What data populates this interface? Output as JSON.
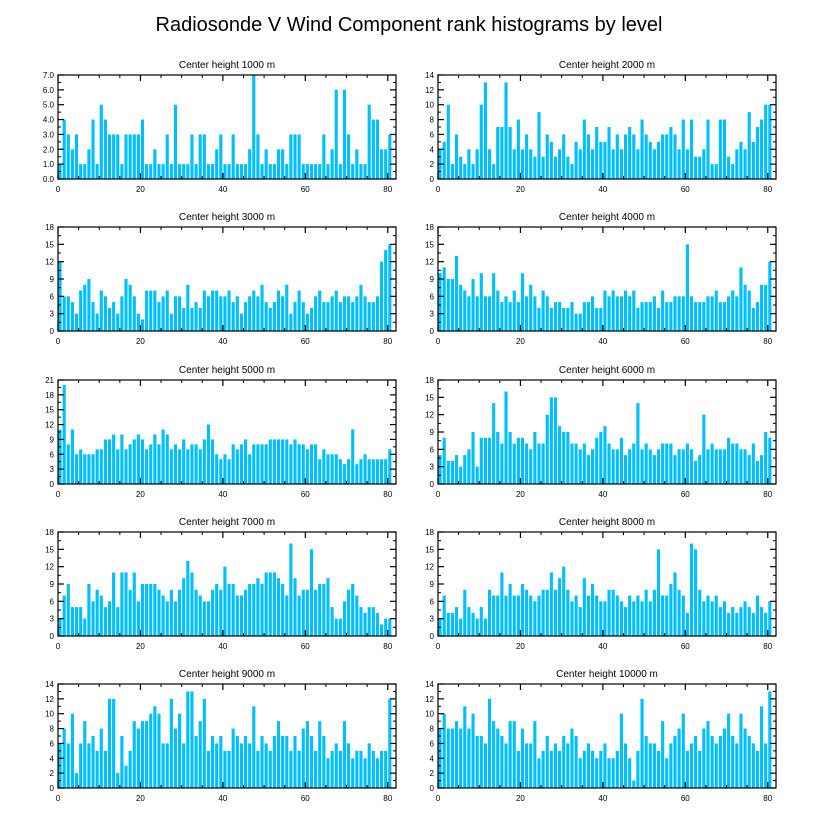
{
  "figure": {
    "title": "Radiosonde V Wind Component rank histograms by level"
  },
  "colors": {
    "bar": "#00bfff",
    "axis": "#000000",
    "background": "#ffffff"
  },
  "chart_data": [
    {
      "type": "bar",
      "title": "Center height 1000 m",
      "xlabel": "",
      "ylabel": "",
      "xlim": [
        0,
        82
      ],
      "ylim": [
        0,
        7
      ],
      "xticks": [
        0,
        20,
        40,
        60,
        80
      ],
      "yticks": [
        0,
        1,
        2,
        3,
        4,
        5,
        6,
        7
      ],
      "ytick_labels": [
        "0.0",
        "1.0",
        "2.0",
        "3.0",
        "4.0",
        "5.0",
        "6.0",
        "7.0"
      ],
      "categories_start": 0,
      "values": [
        1,
        4,
        3,
        2,
        3,
        1,
        1,
        2,
        4,
        1,
        5,
        4,
        3,
        3,
        3,
        1,
        3,
        3,
        3,
        3,
        4,
        1,
        1,
        2,
        1,
        1,
        3,
        1,
        5,
        1,
        1,
        1,
        3,
        1,
        3,
        3,
        1,
        1,
        2,
        3,
        1,
        1,
        3,
        1,
        1,
        1,
        2,
        7,
        3,
        1,
        2,
        1,
        1,
        2,
        2,
        1,
        3,
        3,
        3,
        1,
        1,
        1,
        1,
        1,
        3,
        1,
        2,
        6,
        1,
        6,
        3,
        1,
        2,
        1,
        1,
        5,
        4,
        4,
        2,
        2,
        3
      ]
    },
    {
      "type": "bar",
      "title": "Center height 2000 m",
      "xlabel": "",
      "ylabel": "",
      "xlim": [
        0,
        82
      ],
      "ylim": [
        0,
        14
      ],
      "xticks": [
        0,
        20,
        40,
        60,
        80
      ],
      "yticks": [
        0,
        2,
        4,
        6,
        8,
        10,
        12,
        14
      ],
      "ytick_labels": [
        "0",
        "2",
        "4",
        "6",
        "8",
        "10",
        "12",
        "14"
      ],
      "categories_start": 0,
      "values": [
        4,
        5,
        10,
        2,
        6,
        3,
        2,
        4,
        2,
        4,
        10,
        13,
        4,
        2,
        7,
        7,
        13,
        7,
        4,
        8,
        4,
        6,
        4,
        3,
        9,
        3,
        6,
        5,
        3,
        4,
        6,
        3,
        2,
        5,
        4,
        8,
        6,
        4,
        7,
        5,
        5,
        7,
        4,
        6,
        4,
        6,
        7,
        6,
        4,
        8,
        6,
        5,
        4,
        5,
        6,
        6,
        7,
        6,
        4,
        8,
        4,
        8,
        3,
        3,
        4,
        8,
        2,
        2,
        8,
        8,
        3,
        2,
        4,
        5,
        4,
        9,
        5,
        7,
        8,
        10,
        10
      ]
    },
    {
      "type": "bar",
      "title": "Center height 3000 m",
      "xlabel": "",
      "ylabel": "",
      "xlim": [
        0,
        82
      ],
      "ylim": [
        0,
        18
      ],
      "xticks": [
        0,
        20,
        40,
        60,
        80
      ],
      "yticks": [
        0,
        3,
        6,
        9,
        12,
        15,
        18
      ],
      "ytick_labels": [
        "0",
        "3",
        "6",
        "9",
        "12",
        "15",
        "18"
      ],
      "categories_start": 0,
      "values": [
        12,
        6,
        6,
        5,
        3,
        7,
        8,
        9,
        5,
        3,
        7,
        6,
        4,
        5,
        3,
        6,
        9,
        8,
        6,
        3,
        2,
        7,
        7,
        7,
        5,
        6,
        7,
        3,
        6,
        6,
        4,
        8,
        4,
        5,
        4,
        7,
        6,
        7,
        7,
        6,
        6,
        7,
        5,
        6,
        3,
        5,
        6,
        7,
        6,
        8,
        5,
        4,
        5,
        7,
        6,
        8,
        3,
        5,
        7,
        5,
        3,
        4,
        6,
        7,
        5,
        5,
        6,
        7,
        5,
        6,
        6,
        5,
        6,
        8,
        6,
        5,
        5,
        6,
        12,
        14,
        15
      ]
    },
    {
      "type": "bar",
      "title": "Center height 4000 m",
      "xlabel": "",
      "ylabel": "",
      "xlim": [
        0,
        82
      ],
      "ylim": [
        0,
        18
      ],
      "xticks": [
        0,
        20,
        40,
        60,
        80
      ],
      "yticks": [
        0,
        3,
        6,
        9,
        12,
        15,
        18
      ],
      "ytick_labels": [
        "0",
        "3",
        "6",
        "9",
        "12",
        "15",
        "18"
      ],
      "categories_start": 0,
      "values": [
        10,
        11,
        9,
        9,
        13,
        8,
        7,
        6,
        9,
        6,
        10,
        6,
        6,
        10,
        7,
        5,
        6,
        5,
        7,
        5,
        10,
        6,
        8,
        6,
        4,
        7,
        6,
        4,
        5,
        5,
        4,
        4,
        5,
        3,
        3,
        5,
        5,
        6,
        4,
        4,
        7,
        6,
        7,
        6,
        6,
        7,
        6,
        7,
        4,
        5,
        5,
        5,
        6,
        4,
        7,
        5,
        5,
        6,
        6,
        6,
        15,
        6,
        5,
        5,
        5,
        6,
        6,
        7,
        5,
        5,
        6,
        7,
        6,
        11,
        8,
        7,
        4,
        5,
        8,
        8,
        12
      ]
    },
    {
      "type": "bar",
      "title": "Center height 5000 m",
      "xlabel": "",
      "ylabel": "",
      "xlim": [
        0,
        82
      ],
      "ylim": [
        0,
        21
      ],
      "xticks": [
        0,
        20,
        40,
        60,
        80
      ],
      "yticks": [
        0,
        3,
        6,
        9,
        12,
        15,
        18,
        21
      ],
      "ytick_labels": [
        "0",
        "3",
        "6",
        "9",
        "12",
        "15",
        "18",
        "21"
      ],
      "categories_start": 0,
      "values": [
        11,
        20,
        8,
        11,
        6,
        7,
        6,
        6,
        6,
        7,
        7,
        9,
        9,
        10,
        7,
        10,
        7,
        8,
        9,
        10,
        9,
        7,
        8,
        10,
        8,
        11,
        10,
        7,
        8,
        7,
        9,
        7,
        8,
        8,
        7,
        9,
        12,
        9,
        6,
        5,
        6,
        5,
        8,
        7,
        8,
        9,
        6,
        8,
        8,
        8,
        8,
        9,
        9,
        9,
        9,
        9,
        8,
        9,
        8,
        8,
        7,
        8,
        8,
        5,
        7,
        6,
        6,
        6,
        5,
        4,
        5,
        11,
        4,
        5,
        6,
        5,
        5,
        5,
        5,
        5,
        7
      ]
    },
    {
      "type": "bar",
      "title": "Center height 6000 m",
      "xlabel": "",
      "ylabel": "",
      "xlim": [
        0,
        82
      ],
      "ylim": [
        0,
        18
      ],
      "xticks": [
        0,
        20,
        40,
        60,
        80
      ],
      "yticks": [
        0,
        3,
        6,
        9,
        12,
        15,
        18
      ],
      "ytick_labels": [
        "0",
        "3",
        "6",
        "9",
        "12",
        "15",
        "18"
      ],
      "categories_start": 0,
      "values": [
        5,
        8,
        4,
        4,
        5,
        3,
        5,
        6,
        9,
        3,
        8,
        8,
        8,
        14,
        9,
        7,
        16,
        9,
        7,
        8,
        8,
        7,
        6,
        9,
        7,
        7,
        12,
        15,
        15,
        10,
        9,
        9,
        7,
        7,
        6,
        7,
        5,
        6,
        8,
        9,
        10,
        7,
        6,
        6,
        8,
        5,
        6,
        7,
        14,
        6,
        7,
        6,
        5,
        6,
        7,
        7,
        7,
        5,
        6,
        6,
        7,
        6,
        4,
        5,
        12,
        6,
        7,
        6,
        6,
        6,
        8,
        7,
        7,
        6,
        6,
        5,
        7,
        4,
        5,
        9,
        8
      ]
    },
    {
      "type": "bar",
      "title": "Center height 7000 m",
      "xlabel": "",
      "ylabel": "",
      "xlim": [
        0,
        82
      ],
      "ylim": [
        0,
        18
      ],
      "xticks": [
        0,
        20,
        40,
        60,
        80
      ],
      "yticks": [
        0,
        3,
        6,
        9,
        12,
        15,
        18
      ],
      "ytick_labels": [
        "0",
        "3",
        "6",
        "9",
        "12",
        "15",
        "18"
      ],
      "categories_start": 0,
      "values": [
        3,
        7,
        9,
        5,
        5,
        5,
        3,
        9,
        6,
        8,
        7,
        5,
        6,
        11,
        5,
        11,
        11,
        8,
        11,
        6,
        9,
        9,
        9,
        9,
        8,
        7,
        6,
        8,
        6,
        8,
        10,
        13,
        11,
        8,
        7,
        6,
        6,
        8,
        9,
        8,
        12,
        9,
        9,
        7,
        7,
        8,
        9,
        9,
        10,
        9,
        11,
        11,
        11,
        10,
        9,
        7,
        16,
        10,
        7,
        8,
        8,
        15,
        8,
        9,
        9,
        10,
        5,
        3,
        3,
        6,
        8,
        9,
        7,
        5,
        4,
        5,
        5,
        4,
        2,
        3,
        3
      ]
    },
    {
      "type": "bar",
      "title": "Center height 8000 m",
      "xlabel": "",
      "ylabel": "",
      "xlim": [
        0,
        82
      ],
      "ylim": [
        0,
        18
      ],
      "xticks": [
        0,
        20,
        40,
        60,
        80
      ],
      "yticks": [
        0,
        3,
        6,
        9,
        12,
        15,
        18
      ],
      "ytick_labels": [
        "0",
        "3",
        "6",
        "9",
        "12",
        "15",
        "18"
      ],
      "categories_start": 0,
      "values": [
        3,
        7,
        4,
        4,
        5,
        3,
        8,
        5,
        4,
        3,
        5,
        3,
        8,
        7,
        7,
        11,
        7,
        9,
        7,
        7,
        9,
        8,
        7,
        6,
        7,
        8,
        8,
        11,
        8,
        10,
        12,
        8,
        6,
        7,
        5,
        10,
        7,
        9,
        7,
        6,
        6,
        8,
        8,
        7,
        6,
        5,
        7,
        6,
        7,
        6,
        8,
        6,
        8,
        15,
        7,
        7,
        9,
        11,
        8,
        7,
        4,
        16,
        15,
        8,
        6,
        7,
        6,
        7,
        5,
        6,
        4,
        5,
        4,
        5,
        6,
        5,
        4,
        7,
        5,
        4,
        6
      ]
    },
    {
      "type": "bar",
      "title": "Center height 9000 m",
      "xlabel": "",
      "ylabel": "",
      "xlim": [
        0,
        82
      ],
      "ylim": [
        0,
        14
      ],
      "xticks": [
        0,
        20,
        40,
        60,
        80
      ],
      "yticks": [
        0,
        2,
        4,
        6,
        8,
        10,
        12,
        14
      ],
      "ytick_labels": [
        "0",
        "2",
        "4",
        "6",
        "8",
        "10",
        "12",
        "14"
      ],
      "categories_start": 0,
      "values": [
        6,
        8,
        6,
        10,
        2,
        6,
        9,
        6,
        7,
        5,
        8,
        5,
        12,
        12,
        2,
        7,
        3,
        5,
        9,
        8,
        9,
        9,
        10,
        11,
        10,
        6,
        6,
        12,
        8,
        10,
        6,
        13,
        13,
        7,
        9,
        12,
        5,
        7,
        6,
        7,
        5,
        5,
        8,
        7,
        6,
        7,
        6,
        11,
        5,
        7,
        6,
        5,
        7,
        9,
        7,
        7,
        5,
        7,
        5,
        8,
        9,
        7,
        5,
        9,
        7,
        4,
        5,
        6,
        5,
        9,
        6,
        4,
        5,
        5,
        4,
        6,
        5,
        4,
        5,
        5,
        12
      ]
    },
    {
      "type": "bar",
      "title": "Center height 10000 m",
      "xlabel": "",
      "ylabel": "",
      "xlim": [
        0,
        82
      ],
      "ylim": [
        0,
        14
      ],
      "xticks": [
        0,
        20,
        40,
        60,
        80
      ],
      "yticks": [
        0,
        2,
        4,
        6,
        8,
        10,
        12,
        14
      ],
      "ytick_labels": [
        "0",
        "2",
        "4",
        "6",
        "8",
        "10",
        "12",
        "14"
      ],
      "categories_start": 0,
      "values": [
        8,
        10,
        8,
        8,
        9,
        8,
        11,
        8,
        10,
        7,
        7,
        6,
        12,
        9,
        8,
        7,
        6,
        9,
        9,
        5,
        8,
        6,
        6,
        9,
        4,
        5,
        7,
        5,
        6,
        5,
        7,
        6,
        8,
        7,
        4,
        5,
        6,
        5,
        4,
        5,
        6,
        4,
        4,
        5,
        10,
        6,
        4,
        1,
        5,
        12,
        7,
        6,
        6,
        5,
        9,
        4,
        6,
        7,
        8,
        10,
        5,
        6,
        7,
        5,
        8,
        9,
        7,
        6,
        7,
        8,
        10,
        7,
        6,
        10,
        8,
        7,
        6,
        5,
        11,
        6,
        13
      ]
    }
  ]
}
